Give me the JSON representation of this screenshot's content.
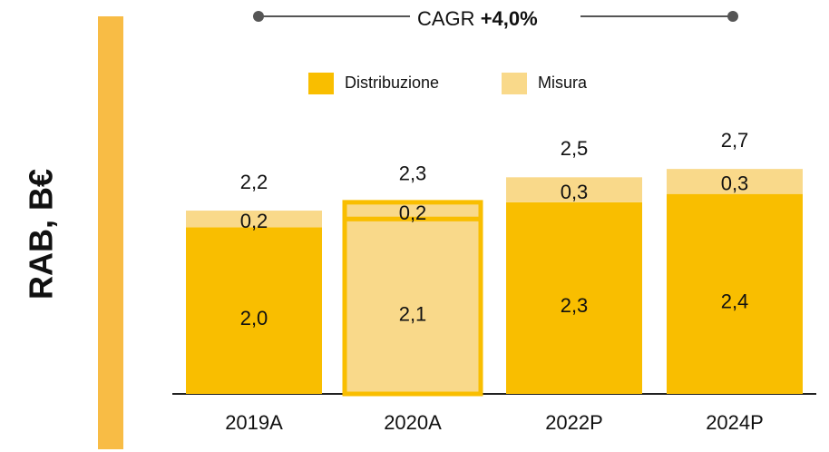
{
  "chart_data": {
    "type": "stacked_bar",
    "title": "CAGR",
    "title_value": "+4,0%",
    "ylabel": "RAB, B€",
    "categories": [
      "2019A",
      "2020A",
      "2022P",
      "2024P"
    ],
    "series": [
      {
        "name": "Distribuzione",
        "color": "#F9BE00",
        "values": [
          2.0,
          2.1,
          2.3,
          2.4
        ],
        "value_labels": [
          "2,0",
          "2,1",
          "2,3",
          "2,4"
        ]
      },
      {
        "name": "Misura",
        "color": "#F9D98A",
        "values": [
          0.2,
          0.2,
          0.3,
          0.3
        ],
        "value_labels": [
          "0,2",
          "0,2",
          "0,3",
          "0,3"
        ]
      }
    ],
    "total_labels": [
      "2,2",
      "2,3",
      "2,5",
      "2,7"
    ],
    "highlight": 1,
    "ylim": [
      0,
      3
    ]
  }
}
